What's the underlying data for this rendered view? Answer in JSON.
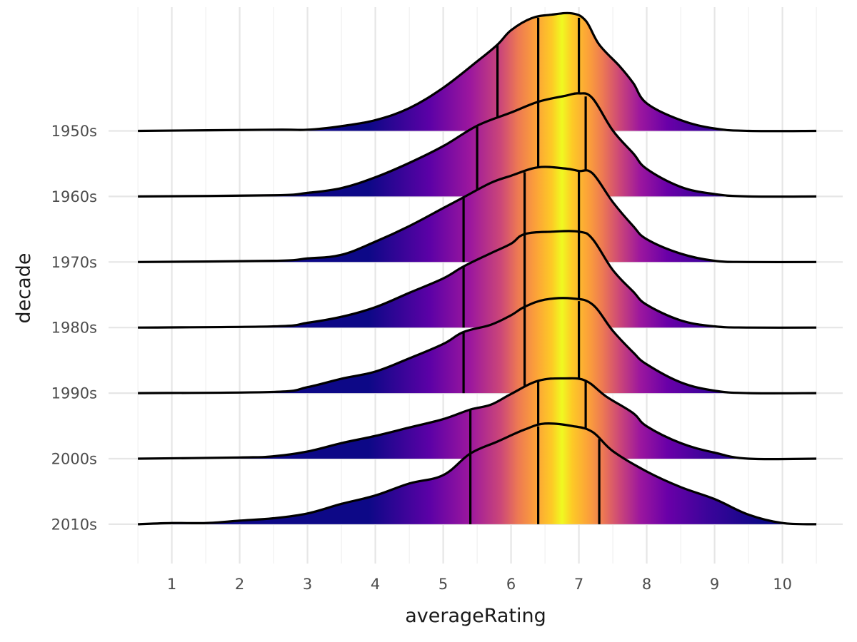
{
  "chart_data": {
    "type": "ridgeline",
    "xlabel": "averageRating",
    "ylabel": "decade",
    "xlim": [
      0.5,
      10.5
    ],
    "x_ticks": [
      "1",
      "2",
      "3",
      "4",
      "5",
      "6",
      "7",
      "8",
      "9",
      "10"
    ],
    "x_tick_values": [
      1,
      2,
      3,
      4,
      5,
      6,
      7,
      8,
      9,
      10
    ],
    "categories": [
      "1950s",
      "1960s",
      "1970s",
      "1980s",
      "1990s",
      "2000s",
      "2010s"
    ],
    "fill": "gradient by x (plasma palette)",
    "palette": [
      "#0d0887",
      "#6a00a8",
      "#b12a90",
      "#e16462",
      "#fca636",
      "#f0f921"
    ],
    "grid": true,
    "quantile_lines": "quartiles (25%, 50%, 75%)",
    "series": [
      {
        "category": "1950s",
        "quantiles": [
          5.8,
          6.4,
          7.0
        ],
        "density": [
          [
            0.5,
            0
          ],
          [
            2.5,
            0.01
          ],
          [
            3.0,
            0.01
          ],
          [
            3.5,
            0.04
          ],
          [
            4.0,
            0.09
          ],
          [
            4.5,
            0.19
          ],
          [
            5.0,
            0.36
          ],
          [
            5.5,
            0.58
          ],
          [
            5.8,
            0.72
          ],
          [
            6.0,
            0.84
          ],
          [
            6.3,
            0.94
          ],
          [
            6.6,
            0.97
          ],
          [
            6.9,
            0.98
          ],
          [
            7.1,
            0.92
          ],
          [
            7.3,
            0.72
          ],
          [
            7.6,
            0.54
          ],
          [
            7.8,
            0.4
          ],
          [
            8.0,
            0.23
          ],
          [
            8.5,
            0.09
          ],
          [
            9.0,
            0.02
          ],
          [
            9.5,
            0
          ],
          [
            10.5,
            0
          ]
        ]
      },
      {
        "category": "1960s",
        "quantiles": [
          5.5,
          6.4,
          7.1
        ],
        "density": [
          [
            0.5,
            0
          ],
          [
            2.5,
            0.01
          ],
          [
            3.0,
            0.03
          ],
          [
            3.5,
            0.07
          ],
          [
            4.0,
            0.16
          ],
          [
            4.5,
            0.28
          ],
          [
            5.0,
            0.42
          ],
          [
            5.5,
            0.59
          ],
          [
            6.0,
            0.7
          ],
          [
            6.4,
            0.79
          ],
          [
            6.8,
            0.84
          ],
          [
            7.0,
            0.86
          ],
          [
            7.2,
            0.82
          ],
          [
            7.5,
            0.55
          ],
          [
            7.8,
            0.36
          ],
          [
            8.0,
            0.23
          ],
          [
            8.5,
            0.08
          ],
          [
            9.0,
            0.02
          ],
          [
            9.5,
            0
          ],
          [
            10.5,
            0
          ]
        ]
      },
      {
        "category": "1970s",
        "quantiles": [
          5.3,
          6.2,
          7.0
        ],
        "density": [
          [
            0.5,
            0
          ],
          [
            2.5,
            0.01
          ],
          [
            3.0,
            0.03
          ],
          [
            3.5,
            0.06
          ],
          [
            4.0,
            0.17
          ],
          [
            4.5,
            0.3
          ],
          [
            5.0,
            0.45
          ],
          [
            5.3,
            0.54
          ],
          [
            5.7,
            0.66
          ],
          [
            6.0,
            0.72
          ],
          [
            6.4,
            0.79
          ],
          [
            6.8,
            0.78
          ],
          [
            7.0,
            0.76
          ],
          [
            7.2,
            0.74
          ],
          [
            7.5,
            0.5
          ],
          [
            7.8,
            0.3
          ],
          [
            8.0,
            0.19
          ],
          [
            8.5,
            0.07
          ],
          [
            9.0,
            0.01
          ],
          [
            9.5,
            0
          ],
          [
            10.5,
            0
          ]
        ]
      },
      {
        "category": "1980s",
        "quantiles": [
          5.3,
          6.2,
          7.0
        ],
        "density": [
          [
            0.5,
            0
          ],
          [
            2.5,
            0.01
          ],
          [
            3.0,
            0.04
          ],
          [
            3.5,
            0.09
          ],
          [
            4.0,
            0.17
          ],
          [
            4.5,
            0.29
          ],
          [
            5.0,
            0.41
          ],
          [
            5.3,
            0.51
          ],
          [
            5.7,
            0.62
          ],
          [
            6.0,
            0.7
          ],
          [
            6.2,
            0.78
          ],
          [
            6.6,
            0.8
          ],
          [
            7.0,
            0.8
          ],
          [
            7.2,
            0.74
          ],
          [
            7.5,
            0.48
          ],
          [
            7.8,
            0.3
          ],
          [
            8.0,
            0.19
          ],
          [
            8.5,
            0.06
          ],
          [
            9.0,
            0.01
          ],
          [
            9.5,
            0
          ],
          [
            10.5,
            0
          ]
        ]
      },
      {
        "category": "1990s",
        "quantiles": [
          5.3,
          6.2,
          7.0
        ],
        "density": [
          [
            0.5,
            0
          ],
          [
            2.5,
            0.01
          ],
          [
            3.0,
            0.05
          ],
          [
            3.5,
            0.12
          ],
          [
            4.0,
            0.18
          ],
          [
            4.5,
            0.29
          ],
          [
            5.0,
            0.41
          ],
          [
            5.3,
            0.51
          ],
          [
            5.7,
            0.57
          ],
          [
            6.0,
            0.65
          ],
          [
            6.2,
            0.72
          ],
          [
            6.5,
            0.78
          ],
          [
            6.9,
            0.79
          ],
          [
            7.2,
            0.74
          ],
          [
            7.5,
            0.52
          ],
          [
            7.8,
            0.34
          ],
          [
            8.0,
            0.24
          ],
          [
            8.5,
            0.09
          ],
          [
            9.0,
            0.02
          ],
          [
            9.5,
            0
          ],
          [
            10.5,
            0
          ]
        ]
      },
      {
        "category": "2000s",
        "quantiles": [
          5.4,
          6.4,
          7.1
        ],
        "density": [
          [
            0.5,
            0
          ],
          [
            2.0,
            0.01
          ],
          [
            2.5,
            0.02
          ],
          [
            3.0,
            0.06
          ],
          [
            3.5,
            0.13
          ],
          [
            4.0,
            0.19
          ],
          [
            4.5,
            0.26
          ],
          [
            5.0,
            0.33
          ],
          [
            5.4,
            0.41
          ],
          [
            5.7,
            0.45
          ],
          [
            6.0,
            0.54
          ],
          [
            6.4,
            0.65
          ],
          [
            6.8,
            0.67
          ],
          [
            7.1,
            0.65
          ],
          [
            7.4,
            0.52
          ],
          [
            7.8,
            0.38
          ],
          [
            8.0,
            0.27
          ],
          [
            8.5,
            0.13
          ],
          [
            9.0,
            0.05
          ],
          [
            9.5,
            0
          ],
          [
            10.5,
            0
          ]
        ]
      },
      {
        "category": "2010s",
        "quantiles": [
          5.4,
          6.4,
          7.3
        ],
        "density": [
          [
            0.5,
            0
          ],
          [
            1.0,
            0.01
          ],
          [
            1.5,
            0.01
          ],
          [
            2.0,
            0.03
          ],
          [
            2.5,
            0.05
          ],
          [
            3.0,
            0.09
          ],
          [
            3.5,
            0.17
          ],
          [
            4.0,
            0.24
          ],
          [
            4.5,
            0.34
          ],
          [
            5.0,
            0.41
          ],
          [
            5.4,
            0.59
          ],
          [
            5.8,
            0.69
          ],
          [
            6.2,
            0.79
          ],
          [
            6.5,
            0.84
          ],
          [
            6.9,
            0.82
          ],
          [
            7.2,
            0.77
          ],
          [
            7.5,
            0.61
          ],
          [
            8.0,
            0.44
          ],
          [
            8.5,
            0.31
          ],
          [
            9.0,
            0.21
          ],
          [
            9.5,
            0.08
          ],
          [
            10.0,
            0.01
          ],
          [
            10.5,
            0
          ]
        ]
      }
    ]
  }
}
